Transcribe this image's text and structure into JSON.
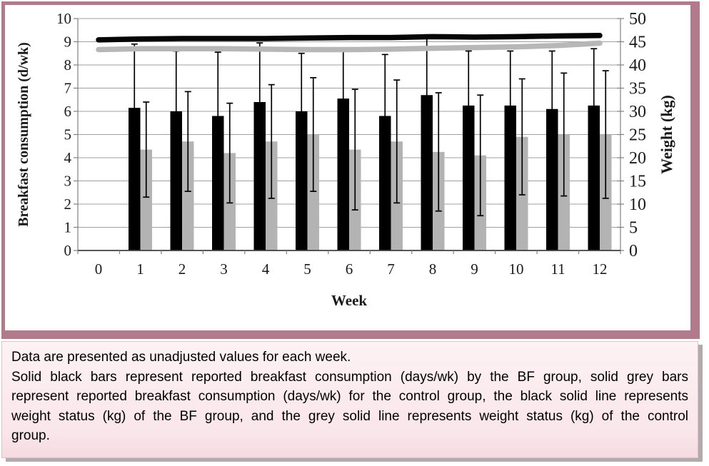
{
  "chart_data": {
    "type": "bar",
    "subtype": "combo bar + line, dual y-axis, upper/lower error whiskers on bars",
    "title": "",
    "xlabel": "Week",
    "categories": [
      0,
      1,
      2,
      3,
      4,
      5,
      6,
      7,
      8,
      9,
      10,
      11,
      12
    ],
    "left_axis": {
      "label": "Breakfast consumption (d/wk)",
      "min": 0,
      "max": 10,
      "step": 1
    },
    "right_axis": {
      "label": "Weight (kg)",
      "min": 0,
      "max": 50,
      "step": 5
    },
    "grid": true,
    "legend_position": "none (series described in caption below figure)",
    "bar_series": [
      {
        "name": "BF group reported breakfast consumption (days/wk)",
        "color": "#000000",
        "axis": "left",
        "weeks": [
          1,
          2,
          3,
          4,
          5,
          6,
          7,
          8,
          9,
          10,
          11,
          12
        ],
        "values": [
          6.15,
          6.0,
          5.8,
          6.4,
          6.0,
          6.55,
          5.8,
          6.7,
          6.25,
          6.25,
          6.1,
          6.25
        ],
        "error": [
          2.75,
          2.6,
          2.75,
          2.55,
          2.5,
          2.1,
          2.65,
          2.6,
          2.35,
          2.35,
          2.5,
          2.45
        ]
      },
      {
        "name": "Control group reported breakfast consumption (days/wk)",
        "color": "#b3b3b3",
        "axis": "left",
        "weeks": [
          1,
          2,
          3,
          4,
          5,
          6,
          7,
          8,
          9,
          10,
          11,
          12
        ],
        "values": [
          4.35,
          4.7,
          4.2,
          4.7,
          5.0,
          4.35,
          4.7,
          4.25,
          4.1,
          4.9,
          5.0,
          5.0
        ],
        "error": [
          2.05,
          2.15,
          2.15,
          2.45,
          2.45,
          2.6,
          2.65,
          2.55,
          2.6,
          2.5,
          2.65,
          2.75
        ]
      }
    ],
    "line_series": [
      {
        "name": "Control group weight status (kg)",
        "color": "#b7b7b7",
        "axis": "right",
        "x": [
          0,
          1,
          2,
          3,
          4,
          5,
          6,
          7,
          8,
          9,
          10,
          11,
          12
        ],
        "values": [
          43.3,
          43.5,
          43.5,
          43.5,
          43.4,
          43.3,
          43.3,
          43.4,
          43.6,
          43.75,
          43.9,
          44.2,
          44.7
        ]
      },
      {
        "name": "BF group weight status (kg)",
        "color": "#050505",
        "axis": "right",
        "x": [
          0,
          1,
          2,
          3,
          4,
          5,
          6,
          7,
          8,
          9,
          10,
          11,
          12
        ],
        "values": [
          45.4,
          45.6,
          45.7,
          45.7,
          45.7,
          45.8,
          45.9,
          45.9,
          46.1,
          46.0,
          46.1,
          46.25,
          46.35
        ]
      }
    ]
  },
  "caption": {
    "line1": "Data are presented as unadjusted values for each week.",
    "body": "Solid black bars represent reported breakfast consumption (days/wk) by the BF group, solid grey bars represent reported breakfast consumption (days/wk) for the control group, the black solid line represents weight status (kg) of the BF group, and the grey solid line represents weight status (kg) of the control group."
  },
  "colors": {
    "frame_border": "#b27b8c",
    "caption_shadow": "#b2aaac",
    "grid": "#9f9f9f",
    "axis": "#808080",
    "x_axis": "#3f3f3f",
    "error_bar": "#000000"
  }
}
